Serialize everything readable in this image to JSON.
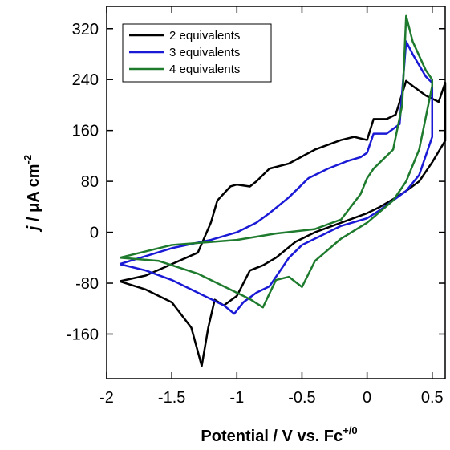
{
  "chart_data": {
    "type": "line",
    "xlabel": "Potential / V vs. Fc",
    "xlabel_sup": "+/0",
    "ylabel_var": "j",
    "ylabel": " / μA cm",
    "ylabel_sup": "-2",
    "xlim": [
      -2,
      0.6
    ],
    "ylim": [
      -230,
      355
    ],
    "xticks": [
      -2,
      -1.5,
      -1,
      -0.5,
      0,
      0.5
    ],
    "yticks": [
      -160,
      -80,
      0,
      80,
      160,
      240,
      320
    ],
    "legend": "upper left",
    "series": [
      {
        "name": "2 equivalents",
        "color": "#000000",
        "x": [
          -1.9,
          -1.7,
          -1.5,
          -1.3,
          -1.2,
          -1.15,
          -1.05,
          -1.0,
          -0.9,
          -0.85,
          -0.75,
          -0.6,
          -0.4,
          -0.2,
          -0.1,
          0.0,
          0.05,
          0.15,
          0.22,
          0.3,
          0.35,
          0.45,
          0.55,
          0.6,
          0.6,
          0.5,
          0.4,
          0.3,
          0.2,
          0.1,
          0.0,
          -0.2,
          -0.4,
          -0.55,
          -0.7,
          -0.8,
          -0.9,
          -1.0,
          -1.1,
          -1.17,
          -1.22,
          -1.27,
          -1.35,
          -1.5,
          -1.7,
          -1.9
        ],
        "values": [
          -77,
          -68,
          -50,
          -32,
          15,
          50,
          72,
          75,
          72,
          80,
          100,
          108,
          130,
          145,
          150,
          145,
          178,
          178,
          185,
          238,
          230,
          215,
          205,
          235,
          144,
          110,
          80,
          65,
          52,
          40,
          30,
          15,
          0,
          -15,
          -40,
          -52,
          -60,
          -100,
          -115,
          -106,
          -150,
          -210,
          -150,
          -110,
          -90,
          -77
        ]
      },
      {
        "name": "3 equivalents",
        "color": "#1a1ad6",
        "x": [
          -1.9,
          -1.5,
          -1.2,
          -1.0,
          -0.85,
          -0.75,
          -0.6,
          -0.45,
          -0.3,
          -0.15,
          -0.05,
          0.0,
          0.05,
          0.15,
          0.25,
          0.3,
          0.35,
          0.45,
          0.5,
          0.5,
          0.4,
          0.3,
          0.2,
          0.1,
          0.0,
          -0.2,
          -0.4,
          -0.5,
          -0.6,
          -0.75,
          -0.85,
          -0.95,
          -1.02,
          -1.1,
          -1.3,
          -1.5,
          -1.7,
          -1.9
        ],
        "values": [
          -50,
          -25,
          -12,
          0,
          15,
          30,
          55,
          85,
          100,
          112,
          118,
          125,
          155,
          155,
          170,
          300,
          280,
          245,
          235,
          150,
          90,
          65,
          50,
          35,
          22,
          10,
          -10,
          -20,
          -40,
          -85,
          -95,
          -110,
          -128,
          -115,
          -95,
          -75,
          -60,
          -50
        ]
      },
      {
        "name": "4 equivalents",
        "color": "#1e7b2e",
        "x": [
          -1.9,
          -1.5,
          -1.0,
          -0.7,
          -0.4,
          -0.2,
          -0.05,
          0.0,
          0.05,
          0.1,
          0.2,
          0.27,
          0.3,
          0.35,
          0.45,
          0.5,
          0.5,
          0.4,
          0.3,
          0.2,
          0.0,
          -0.2,
          -0.4,
          -0.5,
          -0.6,
          -0.7,
          -0.8,
          -0.9,
          -1.1,
          -1.3,
          -1.6,
          -1.9
        ],
        "values": [
          -40,
          -20,
          -12,
          -2,
          5,
          20,
          60,
          85,
          100,
          110,
          130,
          200,
          340,
          300,
          255,
          240,
          230,
          130,
          80,
          50,
          15,
          -10,
          -45,
          -86,
          -70,
          -75,
          -118,
          -105,
          -85,
          -65,
          -45,
          -40
        ]
      }
    ]
  }
}
